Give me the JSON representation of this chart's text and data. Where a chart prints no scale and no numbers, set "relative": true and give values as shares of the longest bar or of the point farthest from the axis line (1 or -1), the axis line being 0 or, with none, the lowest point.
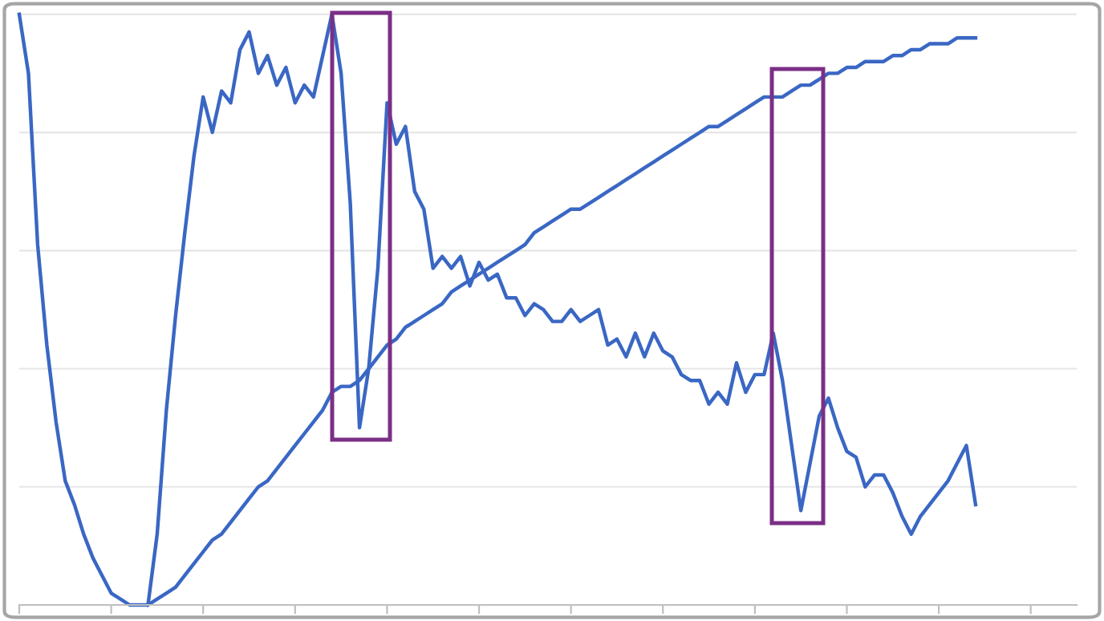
{
  "chart_data": {
    "type": "line",
    "relative": true,
    "grid": "y",
    "marker": "none",
    "line_style": "solid",
    "categories": [
      null,
      null,
      null,
      null,
      null,
      null,
      null,
      null,
      null,
      null,
      null,
      null,
      null,
      null,
      null,
      null,
      null,
      null,
      null,
      null,
      null,
      null,
      null,
      null,
      null,
      null,
      null,
      null,
      null,
      null,
      null,
      null,
      null,
      null,
      null,
      null,
      null,
      null,
      null,
      null,
      null,
      null,
      null,
      null,
      null,
      null,
      null,
      null,
      null,
      null,
      null,
      null,
      null,
      null,
      null,
      null,
      null,
      null,
      null,
      null,
      null,
      null,
      null,
      null,
      null,
      null,
      null,
      null,
      null,
      null,
      null,
      null,
      null,
      null,
      null,
      null,
      null,
      null,
      null,
      null,
      null,
      null,
      null,
      null,
      null,
      null,
      null,
      null,
      null,
      null,
      null,
      null,
      null,
      null,
      null,
      null,
      null,
      null,
      null,
      null,
      null,
      null,
      null,
      null,
      null,
      null,
      null,
      null,
      null,
      null,
      null,
      null,
      null,
      null,
      null,
      null
    ],
    "series": [
      {
        "color": "#3a67c4",
        "values": [
          1,
          0.9,
          0.61,
          0.44,
          0.31,
          0.21,
          0.17,
          0.12,
          0.08,
          0.05,
          0.02,
          0.01,
          0,
          0,
          0,
          0.12,
          0.33,
          0.49,
          0.63,
          0.76,
          0.86,
          0.8,
          0.87,
          0.85,
          0.94,
          0.97,
          0.9,
          0.93,
          0.88,
          0.91,
          0.85,
          0.88,
          0.86,
          0.93,
          1,
          0.9,
          0.68,
          0.3,
          0.4,
          0.57,
          0.85,
          0.78,
          0.81,
          0.7,
          0.67,
          0.57,
          0.59,
          0.57,
          0.59,
          0.54,
          0.58,
          0.55,
          0.56,
          0.52,
          0.52,
          0.49,
          0.51,
          0.5,
          0.48,
          0.48,
          0.5,
          0.48,
          0.49,
          0.5,
          0.44,
          0.45,
          0.42,
          0.46,
          0.42,
          0.46,
          0.43,
          0.42,
          0.39,
          0.38,
          0.38,
          0.34,
          0.36,
          0.34,
          0.41,
          0.36,
          0.39,
          0.39,
          0.46,
          0.38,
          0.27,
          0.16,
          0.24,
          0.32,
          0.35,
          0.3,
          0.26,
          0.25,
          0.2,
          0.22,
          0.22,
          0.19,
          0.15,
          0.12,
          0.15,
          0.17,
          0.19,
          0.21,
          0.24,
          0.27,
          0.17,
          null,
          null,
          null,
          null,
          null,
          null,
          null,
          null,
          null,
          null,
          null
        ]
      },
      {
        "color": "#3a67c4",
        "values": [
          null,
          null,
          null,
          null,
          null,
          null,
          null,
          null,
          null,
          null,
          null,
          null,
          null,
          null,
          0,
          0.01,
          0.02,
          0.03,
          0.05,
          0.07,
          0.09,
          0.11,
          0.12,
          0.14,
          0.16,
          0.18,
          0.2,
          0.21,
          0.23,
          0.25,
          0.27,
          0.29,
          0.31,
          0.33,
          0.36,
          0.37,
          0.37,
          0.38,
          0.4,
          0.42,
          0.44,
          0.45,
          0.47,
          0.48,
          0.49,
          0.5,
          0.51,
          0.53,
          0.54,
          0.55,
          0.56,
          0.57,
          0.58,
          0.59,
          0.6,
          0.61,
          0.63,
          0.64,
          0.65,
          0.66,
          0.67,
          0.67,
          0.68,
          0.69,
          0.7,
          0.71,
          0.72,
          0.73,
          0.74,
          0.75,
          0.76,
          0.77,
          0.78,
          0.79,
          0.8,
          0.81,
          0.81,
          0.82,
          0.83,
          0.84,
          0.85,
          0.86,
          0.86,
          0.86,
          0.87,
          0.88,
          0.88,
          0.89,
          0.9,
          0.9,
          0.91,
          0.91,
          0.92,
          0.92,
          0.92,
          0.93,
          0.93,
          0.94,
          0.94,
          0.95,
          0.95,
          0.95,
          0.96,
          0.96,
          0.96,
          null,
          null,
          null,
          null,
          null,
          null,
          null,
          null,
          null,
          null,
          null
        ]
      }
    ]
  }
}
